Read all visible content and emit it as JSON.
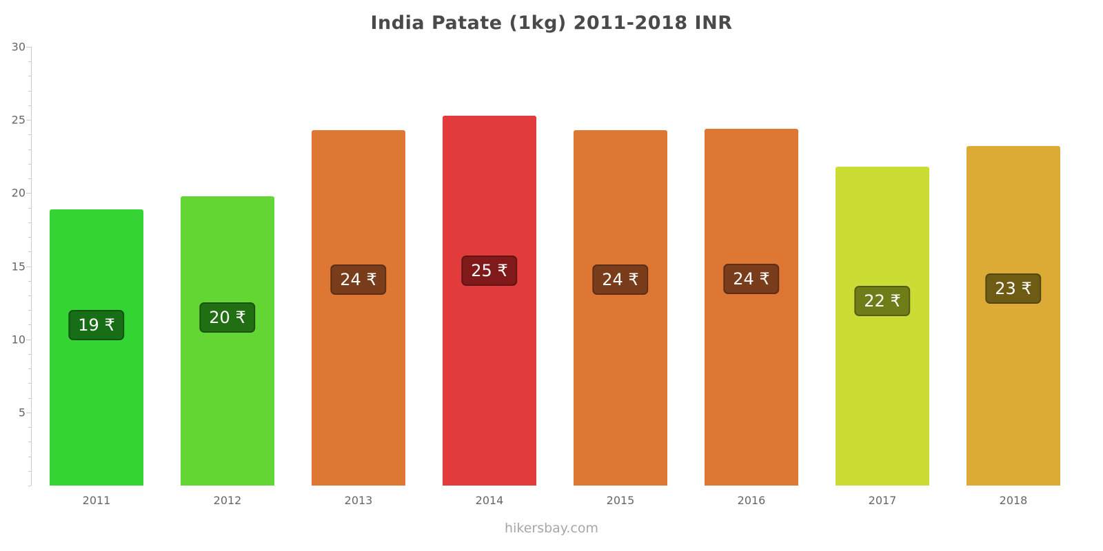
{
  "title": "India Patate (1kg) 2011-2018 INR",
  "footer": "hikersbay.com",
  "chart_data": {
    "type": "bar",
    "title": "India Patate (1kg) 2011-2018 INR",
    "xlabel": "",
    "ylabel": "",
    "categories": [
      "2011",
      "2012",
      "2013",
      "2014",
      "2015",
      "2016",
      "2017",
      "2018"
    ],
    "values": [
      18.9,
      19.8,
      24.3,
      25.3,
      24.3,
      24.4,
      21.8,
      23.2
    ],
    "bar_labels": [
      "19 ₹",
      "20 ₹",
      "24 ₹",
      "25 ₹",
      "24 ₹",
      "24 ₹",
      "22 ₹",
      "23 ₹"
    ],
    "bar_colors": [
      "#33d433",
      "#63d633",
      "#dd7733",
      "#e23b3b",
      "#dd7733",
      "#dd7733",
      "#cbdc35",
      "#dcab35"
    ],
    "badge_colors": [
      "#176e17",
      "#226e13",
      "#7a3d1c",
      "#801a1a",
      "#7a3d1c",
      "#7a3d1c",
      "#6f7c17",
      "#6e5c14"
    ],
    "ylim": [
      0,
      30
    ],
    "yticks_labeled": [
      5,
      10,
      15,
      20,
      25,
      30
    ],
    "grid": "off",
    "legend": "none",
    "currency_symbol": "₹"
  }
}
